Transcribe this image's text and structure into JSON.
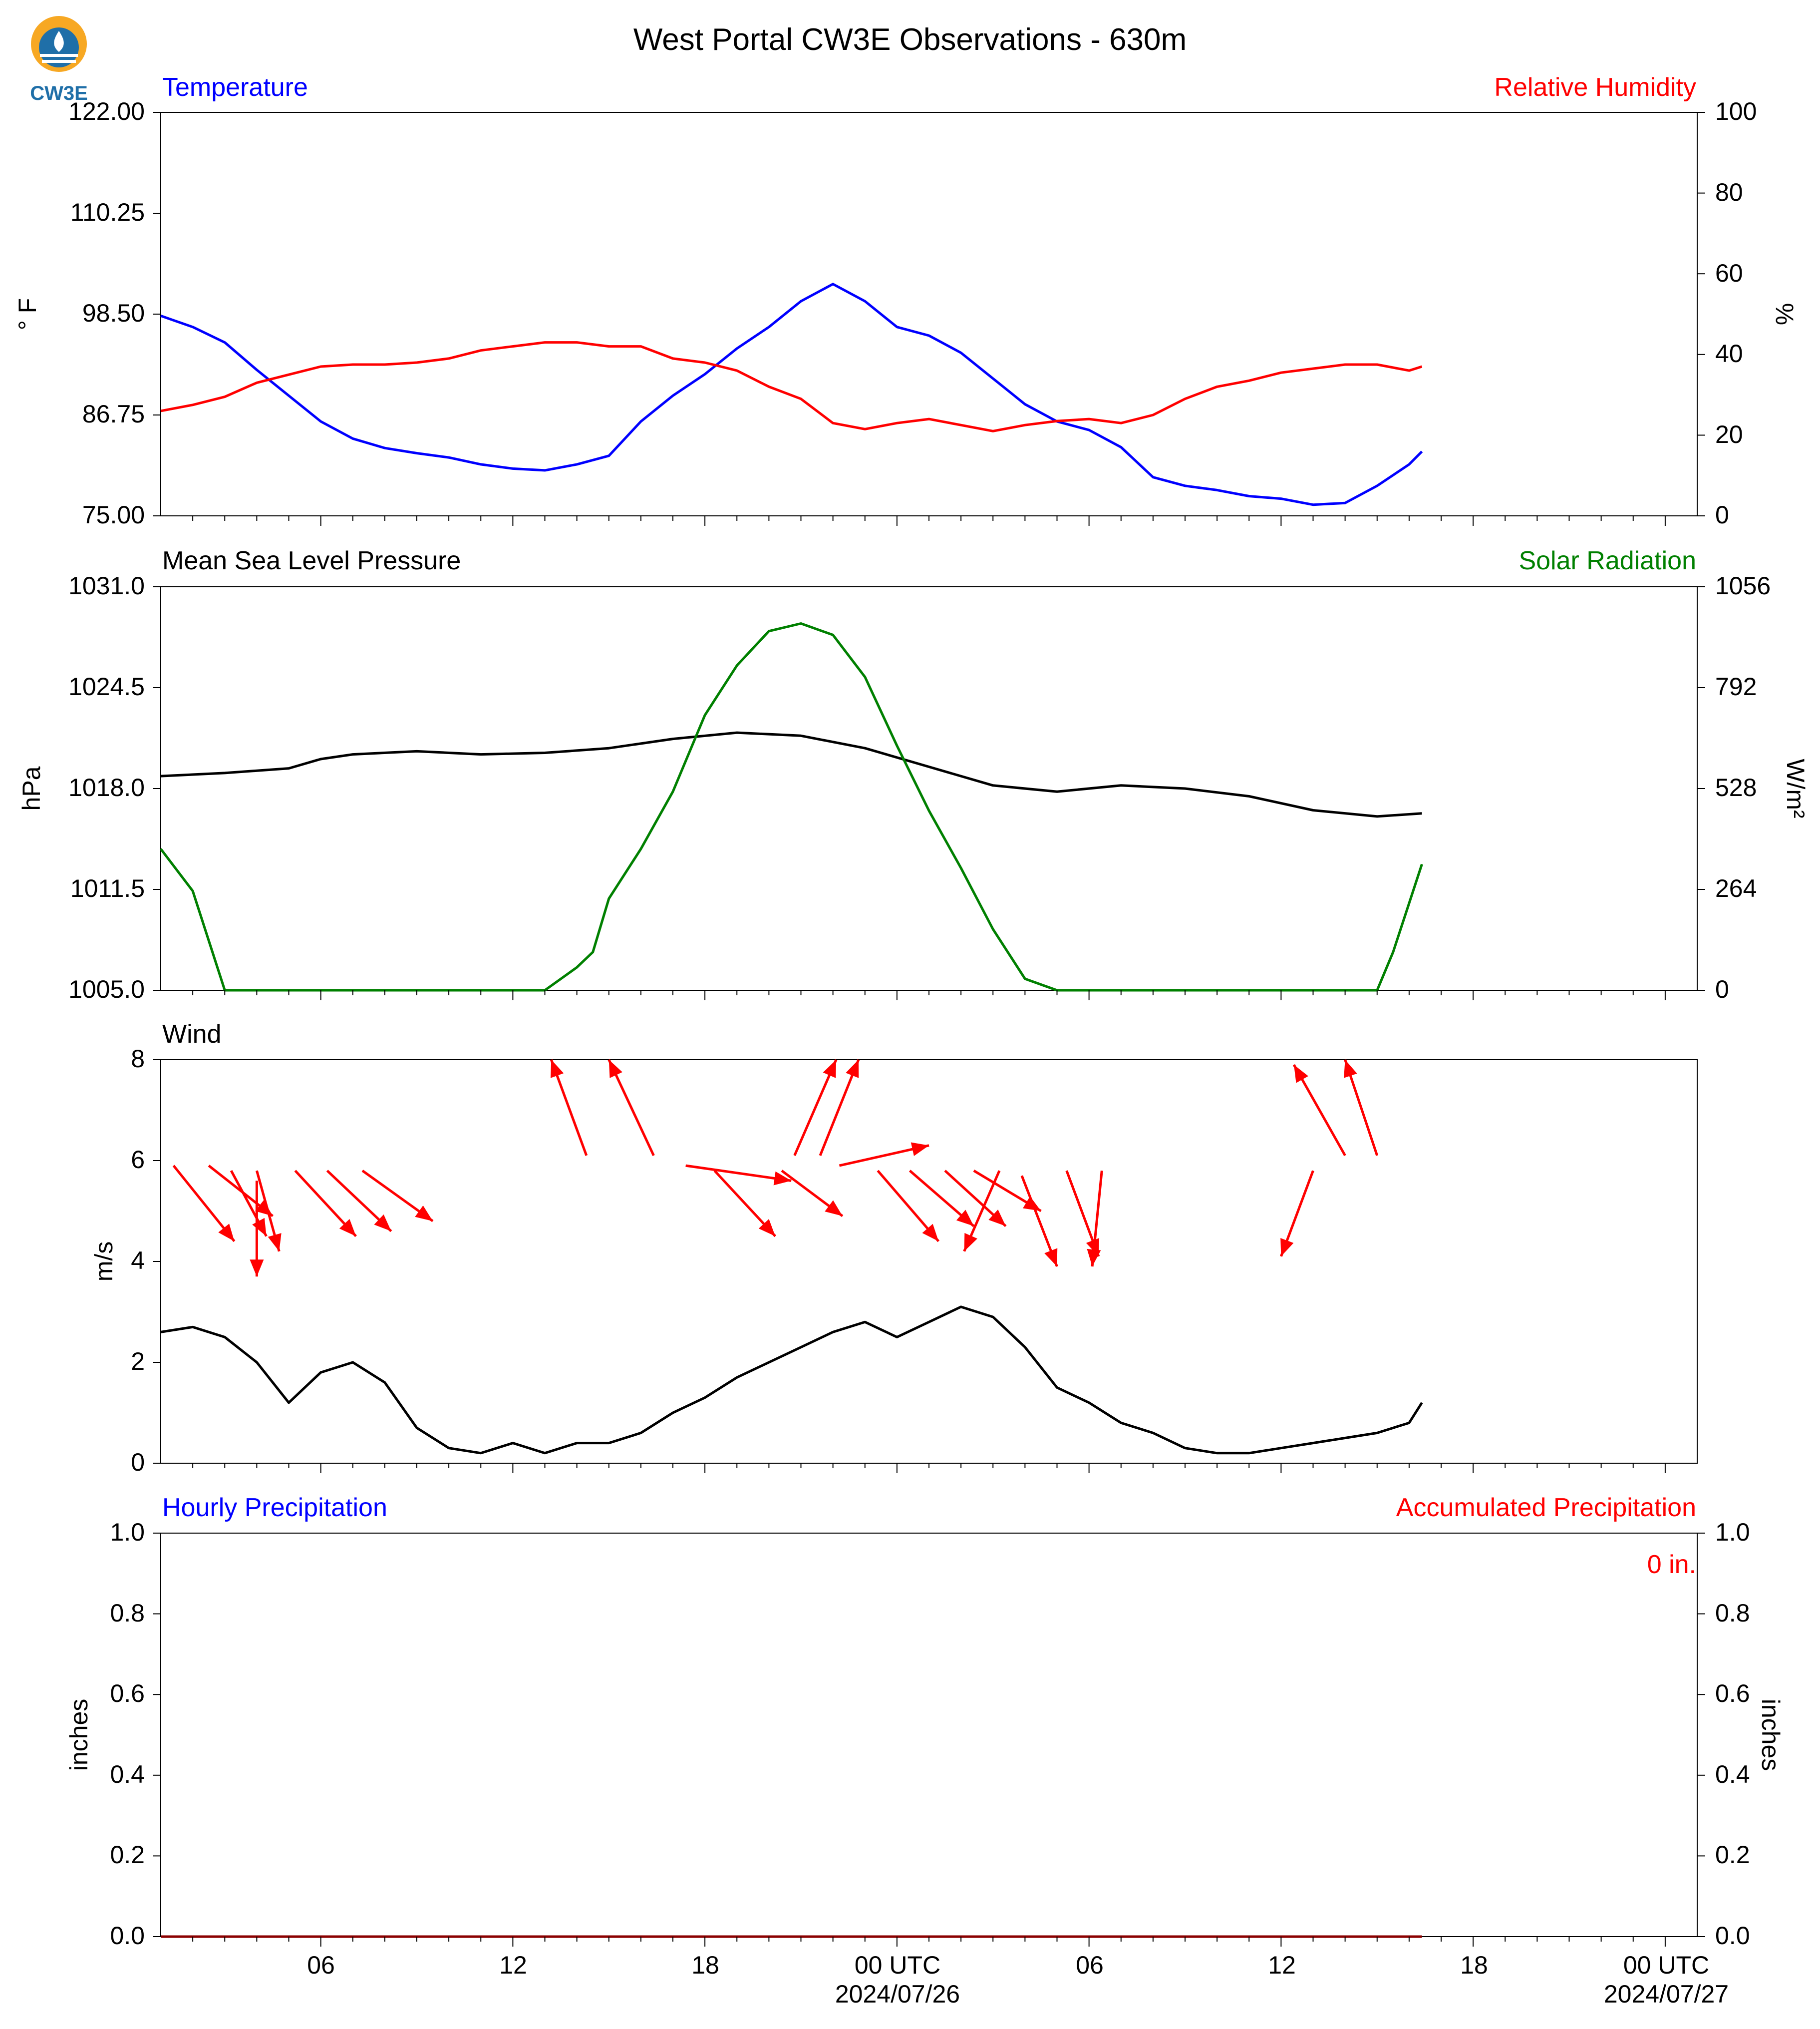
{
  "title": "West Portal CW3E Observations - 630m",
  "logo_text": "CW3E",
  "colors": {
    "blue": "#0000ff",
    "red": "#ff0000",
    "black": "#000000",
    "green": "#008000",
    "darkred": "#8b0000"
  },
  "chart_data": [
    {
      "type": "line",
      "left_title": "Temperature",
      "right_title": "Relative Humidity",
      "ylabel": "° F",
      "ylabel_right": "%",
      "ylim": [
        75.0,
        122.0
      ],
      "ylim_right": [
        0,
        100
      ],
      "yticks": [
        "75.00",
        "86.75",
        "98.50",
        "110.25",
        "122.00"
      ],
      "yticks_right": [
        "0",
        "20",
        "40",
        "60",
        "80",
        "100"
      ],
      "series": [
        {
          "name": "Temperature",
          "color": "#0000ff",
          "axis": "left",
          "points": [
            [
              0,
              98.3
            ],
            [
              1,
              97
            ],
            [
              2,
              95.2
            ],
            [
              3,
              92
            ],
            [
              4,
              89
            ],
            [
              5,
              86
            ],
            [
              6,
              84
            ],
            [
              7,
              82.9
            ],
            [
              8,
              82.3
            ],
            [
              9,
              81.8
            ],
            [
              10,
              81
            ],
            [
              11,
              80.5
            ],
            [
              12,
              80.3
            ],
            [
              13,
              81
            ],
            [
              14,
              82
            ],
            [
              15,
              86
            ],
            [
              16,
              89
            ],
            [
              17,
              91.5
            ],
            [
              18,
              94.5
            ],
            [
              19,
              97
            ],
            [
              20,
              100
            ],
            [
              21,
              102
            ],
            [
              22,
              100
            ],
            [
              23,
              97
            ],
            [
              24,
              96
            ],
            [
              25,
              94
            ],
            [
              26,
              91
            ],
            [
              27,
              88
            ],
            [
              28,
              86
            ],
            [
              29,
              85
            ],
            [
              30,
              83
            ],
            [
              31,
              79.5
            ],
            [
              32,
              78.5
            ],
            [
              33,
              78
            ],
            [
              34,
              77.3
            ],
            [
              35,
              77
            ],
            [
              36,
              76.3
            ],
            [
              37,
              76.5
            ],
            [
              38,
              78.5
            ],
            [
              39,
              81
            ],
            [
              39.4,
              82.5
            ]
          ]
        },
        {
          "name": "Relative Humidity",
          "color": "#ff0000",
          "axis": "right",
          "points": [
            [
              0,
              26
            ],
            [
              1,
              27.5
            ],
            [
              2,
              29.5
            ],
            [
              3,
              33
            ],
            [
              4,
              35
            ],
            [
              5,
              37
            ],
            [
              6,
              37.5
            ],
            [
              7,
              37.5
            ],
            [
              8,
              38
            ],
            [
              9,
              39
            ],
            [
              10,
              41
            ],
            [
              11,
              42
            ],
            [
              12,
              43
            ],
            [
              13,
              43
            ],
            [
              14,
              42
            ],
            [
              15,
              42
            ],
            [
              16,
              39
            ],
            [
              17,
              38
            ],
            [
              18,
              36
            ],
            [
              19,
              32
            ],
            [
              20,
              29
            ],
            [
              21,
              23
            ],
            [
              22,
              21.5
            ],
            [
              23,
              23
            ],
            [
              24,
              24
            ],
            [
              25,
              22.5
            ],
            [
              26,
              21
            ],
            [
              27,
              22.5
            ],
            [
              28,
              23.5
            ],
            [
              29,
              24
            ],
            [
              30,
              23
            ],
            [
              31,
              25
            ],
            [
              32,
              29
            ],
            [
              33,
              32
            ],
            [
              34,
              33.5
            ],
            [
              35,
              35.5
            ],
            [
              36,
              36.5
            ],
            [
              37,
              37.5
            ],
            [
              38,
              37.5
            ],
            [
              39,
              36
            ],
            [
              39.4,
              37
            ]
          ]
        }
      ]
    },
    {
      "type": "line",
      "left_title": "Mean Sea Level Pressure",
      "right_title": "Solar Radiation",
      "ylabel": "hPa",
      "ylabel_right": "W/m²",
      "ylim": [
        1005.0,
        1031.0
      ],
      "ylim_right": [
        0,
        1056
      ],
      "yticks": [
        "1005.0",
        "1011.5",
        "1018.0",
        "1024.5",
        "1031.0"
      ],
      "yticks_right": [
        "0",
        "264",
        "528",
        "792",
        "1056"
      ],
      "series": [
        {
          "name": "Mean Sea Level Pressure",
          "color": "#000000",
          "axis": "left",
          "points": [
            [
              0,
              1018.8
            ],
            [
              2,
              1019
            ],
            [
              4,
              1019.3
            ],
            [
              5,
              1019.9
            ],
            [
              6,
              1020.2
            ],
            [
              8,
              1020.4
            ],
            [
              10,
              1020.2
            ],
            [
              12,
              1020.3
            ],
            [
              14,
              1020.6
            ],
            [
              16,
              1021.2
            ],
            [
              18,
              1021.6
            ],
            [
              20,
              1021.4
            ],
            [
              22,
              1020.6
            ],
            [
              24,
              1019.4
            ],
            [
              26,
              1018.2
            ],
            [
              28,
              1017.8
            ],
            [
              30,
              1018.2
            ],
            [
              32,
              1018
            ],
            [
              34,
              1017.5
            ],
            [
              36,
              1016.6
            ],
            [
              38,
              1016.2
            ],
            [
              39.4,
              1016.4
            ]
          ]
        },
        {
          "name": "Solar Radiation",
          "color": "#008000",
          "axis": "right",
          "points": [
            [
              0,
              370
            ],
            [
              1,
              260
            ],
            [
              2,
              0
            ],
            [
              12,
              0
            ],
            [
              13,
              60
            ],
            [
              13.5,
              100
            ],
            [
              14,
              240
            ],
            [
              15,
              370
            ],
            [
              16,
              520
            ],
            [
              17,
              720
            ],
            [
              18,
              850
            ],
            [
              19,
              940
            ],
            [
              20,
              960
            ],
            [
              21,
              930
            ],
            [
              22,
              820
            ],
            [
              23,
              640
            ],
            [
              24,
              470
            ],
            [
              25,
              320
            ],
            [
              26,
              160
            ],
            [
              27,
              30
            ],
            [
              28,
              0
            ],
            [
              38,
              0
            ],
            [
              38.5,
              100
            ],
            [
              39.4,
              330
            ]
          ]
        }
      ]
    },
    {
      "type": "line",
      "left_title": "Wind",
      "ylabel": "m/s",
      "ylim": [
        0,
        8
      ],
      "yticks": [
        "0",
        "2",
        "4",
        "6",
        "8"
      ],
      "series": [
        {
          "name": "Wind",
          "color": "#000000",
          "axis": "left",
          "points": [
            [
              0,
              2.6
            ],
            [
              1,
              2.7
            ],
            [
              2,
              2.5
            ],
            [
              3,
              2
            ],
            [
              4,
              1.2
            ],
            [
              5,
              1.8
            ],
            [
              6,
              2
            ],
            [
              7,
              1.6
            ],
            [
              8,
              0.7
            ],
            [
              9,
              0.3
            ],
            [
              10,
              0.2
            ],
            [
              11,
              0.4
            ],
            [
              12,
              0.2
            ],
            [
              13,
              0.4
            ],
            [
              14,
              0.4
            ],
            [
              15,
              0.6
            ],
            [
              16,
              1.0
            ],
            [
              17,
              1.3
            ],
            [
              18,
              1.7
            ],
            [
              19,
              2.0
            ],
            [
              20,
              2.3
            ],
            [
              21,
              2.6
            ],
            [
              22,
              2.8
            ],
            [
              23,
              2.5
            ],
            [
              24,
              2.8
            ],
            [
              25,
              3.1
            ],
            [
              26,
              2.9
            ],
            [
              27,
              2.3
            ],
            [
              28,
              1.5
            ],
            [
              29,
              1.2
            ],
            [
              30,
              0.8
            ],
            [
              31,
              0.6
            ],
            [
              32,
              0.3
            ],
            [
              33,
              0.2
            ],
            [
              34,
              0.2
            ],
            [
              35,
              0.3
            ],
            [
              36,
              0.4
            ],
            [
              37,
              0.5
            ],
            [
              38,
              0.6
            ],
            [
              39,
              0.8
            ],
            [
              39.4,
              1.2
            ]
          ]
        }
      ],
      "arrows": [
        [
          0.4,
          5.9,
          2.3,
          4.4
        ],
        [
          1.5,
          5.9,
          3.5,
          4.9
        ],
        [
          2.2,
          5.8,
          3.3,
          4.5
        ],
        [
          3.0,
          5.8,
          3.7,
          4.2
        ],
        [
          3.0,
          5.6,
          3.0,
          3.7
        ],
        [
          4.2,
          5.8,
          6.1,
          4.5
        ],
        [
          5.2,
          5.8,
          7.2,
          4.6
        ],
        [
          6.3,
          5.8,
          8.5,
          4.8
        ],
        [
          13.3,
          6.1,
          12.2,
          8.0
        ],
        [
          15.4,
          6.1,
          14.0,
          8.0
        ],
        [
          16.4,
          5.9,
          19.7,
          5.6
        ],
        [
          17.3,
          5.8,
          19.2,
          4.5
        ],
        [
          19.4,
          5.8,
          21.3,
          4.9
        ],
        [
          19.8,
          6.1,
          21.1,
          8.0
        ],
        [
          20.6,
          6.1,
          21.8,
          8.0
        ],
        [
          21.2,
          5.9,
          24.0,
          6.3
        ],
        [
          22.4,
          5.8,
          24.3,
          4.4
        ],
        [
          23.4,
          5.8,
          25.4,
          4.7
        ],
        [
          24.5,
          5.8,
          26.4,
          4.7
        ],
        [
          25.4,
          5.8,
          27.5,
          5.0
        ],
        [
          26.2,
          5.8,
          25.1,
          4.2
        ],
        [
          26.9,
          5.7,
          28.0,
          3.9
        ],
        [
          28.3,
          5.8,
          29.3,
          4.1
        ],
        [
          29.4,
          5.8,
          29.1,
          3.9
        ],
        [
          36.0,
          5.8,
          35.0,
          4.1
        ],
        [
          37.0,
          6.1,
          35.4,
          7.9
        ],
        [
          38.0,
          6.1,
          37.0,
          8.0
        ]
      ]
    },
    {
      "type": "line",
      "left_title": "Hourly Precipitation",
      "right_title": "Accumulated Precipitation",
      "ylabel": "inches",
      "ylabel_right": "inches",
      "ylim": [
        0.0,
        1.0
      ],
      "ylim_right": [
        0.0,
        1.0
      ],
      "yticks": [
        "0.0",
        "0.2",
        "0.4",
        "0.6",
        "0.8",
        "1.0"
      ],
      "yticks_right": [
        "0.0",
        "0.2",
        "0.4",
        "0.6",
        "0.8",
        "1.0"
      ],
      "annotation": "0 in.",
      "series": [
        {
          "name": "Hourly Precipitation",
          "color": "#0000ff",
          "axis": "left",
          "points": [
            [
              0,
              0
            ],
            [
              39.4,
              0
            ]
          ]
        },
        {
          "name": "Accumulated Precipitation",
          "color": "#8b0000",
          "axis": "right",
          "points": [
            [
              0,
              0
            ],
            [
              39.4,
              0
            ]
          ]
        }
      ]
    }
  ],
  "x_axis": {
    "range_hours": [
      0,
      48
    ],
    "tick_labels": [
      {
        "hour": 5,
        "label": "06"
      },
      {
        "hour": 11,
        "label": "12"
      },
      {
        "hour": 17,
        "label": "18"
      },
      {
        "hour": 23,
        "label": "00 UTC",
        "date": "2024/07/26"
      },
      {
        "hour": 29,
        "label": "06"
      },
      {
        "hour": 35,
        "label": "12"
      },
      {
        "hour": 41,
        "label": "18"
      },
      {
        "hour": 47,
        "label": "00 UTC",
        "date": "2024/07/27"
      }
    ]
  }
}
